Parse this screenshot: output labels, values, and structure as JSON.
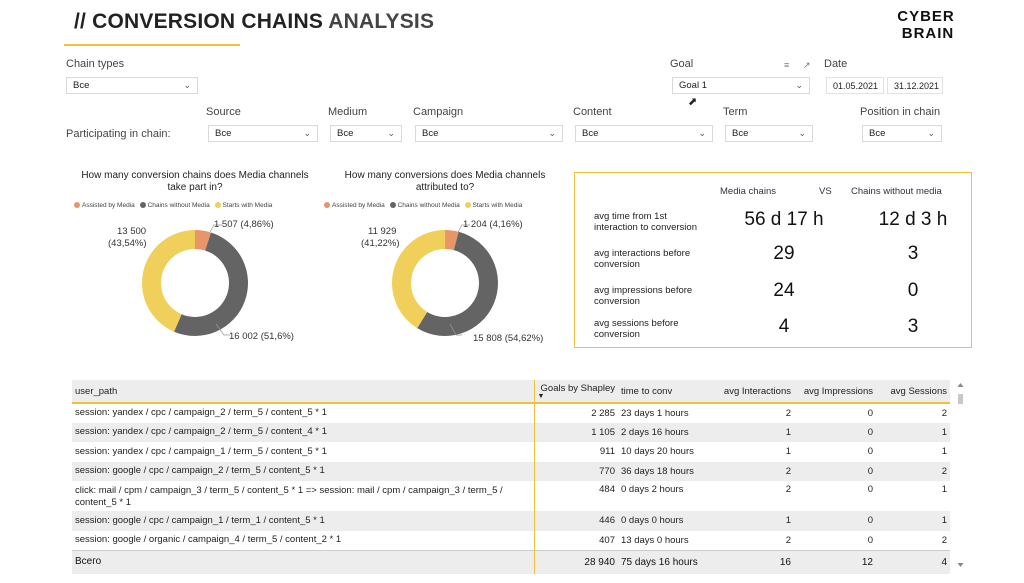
{
  "header": {
    "title_prefix": "// ",
    "title_main": "CONVERSION CHAINS",
    "title_suffix": " ANALYSIS",
    "logo_line1": "CYBER",
    "logo_line2": "BRAIN"
  },
  "filters": {
    "chain_types": {
      "label": "Chain types",
      "value": "Все"
    },
    "goal": {
      "label": "Goal",
      "value": "Goal 1"
    },
    "date": {
      "label": "Date",
      "from": "01.05.2021",
      "to": "31.12.2021"
    },
    "participating_label": "Participating in chain:",
    "source": {
      "label": "Source",
      "value": "Все"
    },
    "medium": {
      "label": "Medium",
      "value": "Все"
    },
    "campaign": {
      "label": "Campaign",
      "value": "Все"
    },
    "content": {
      "label": "Content",
      "value": "Все"
    },
    "term": {
      "label": "Term",
      "value": "Все"
    },
    "position": {
      "label": "Position in chain",
      "value": "Все"
    }
  },
  "colors": {
    "assisted": "#e8956a",
    "without": "#646464",
    "starts": "#f0cf5a",
    "accent": "#f0c040"
  },
  "chart_data": [
    {
      "type": "pie",
      "title": "How many conversion chains does Media channels take part in?",
      "legend": [
        "Assisted by Media",
        "Chains without Media",
        "Starts with Media"
      ],
      "categories": [
        "Assisted by Media",
        "Chains without Media",
        "Starts with Media"
      ],
      "values": [
        1507,
        16002,
        13500
      ],
      "labels": [
        "1 507 (4,86%)",
        "16 002 (51,6%)",
        "13 500",
        "(43,54%)"
      ]
    },
    {
      "type": "pie",
      "title": "How many conversions does Media channels attributed to?",
      "legend": [
        "Assisted by Media",
        "Chains without Media",
        "Starts with Media"
      ],
      "categories": [
        "Assisted by Media",
        "Chains without Media",
        "Starts with Media"
      ],
      "values": [
        1204,
        15808,
        11929
      ],
      "labels": [
        "1 204 (4,16%)",
        "15 808 (54,62%)",
        "11 929",
        "(41,22%)"
      ]
    }
  ],
  "comparison": {
    "col_media": "Media chains",
    "col_vs": "VS",
    "col_without": "Chains without media",
    "rows": [
      {
        "label1": "avg time from 1st",
        "label2": "interaction to conversion",
        "media": "56 d 17 h",
        "without": "12 d 3 h"
      },
      {
        "label1": "avg interactions before",
        "label2": "conversion",
        "media": "29",
        "without": "3"
      },
      {
        "label1": "avg impressions before",
        "label2": "conversion",
        "media": "24",
        "without": "0"
      },
      {
        "label1": "avg sessions before",
        "label2": "conversion",
        "media": "4",
        "without": "3"
      }
    ]
  },
  "table": {
    "headers": {
      "path": "user_path",
      "shapley": "Goals by Shapley",
      "time": "time to conv",
      "interactions": "avg Interactions",
      "impressions": "avg Impressions",
      "sessions": "avg Sessions"
    },
    "rows": [
      {
        "path": "session: yandex / cpc / campaign_2 / term_5 / content_5 * 1",
        "shapley": "2 285",
        "time": "23 days 1 hours",
        "interactions": "2",
        "impressions": "0",
        "sessions": "2"
      },
      {
        "path": "session: yandex / cpc / campaign_2 / term_5 / content_4 * 1",
        "shapley": "1 105",
        "time": "2 days 16 hours",
        "interactions": "1",
        "impressions": "0",
        "sessions": "1"
      },
      {
        "path": "session: yandex / cpc / campaign_1 / term_5 / content_5 * 1",
        "shapley": "911",
        "time": "10 days 20 hours",
        "interactions": "1",
        "impressions": "0",
        "sessions": "1"
      },
      {
        "path": "session: google / cpc / campaign_2 / term_5 / content_5 * 1",
        "shapley": "770",
        "time": "36 days 18 hours",
        "interactions": "2",
        "impressions": "0",
        "sessions": "2"
      },
      {
        "path": "click: mail / cpm / campaign_3 / term_5 / content_5 * 1 => session: mail / cpm / campaign_3 / term_5 / content_5 * 1",
        "shapley": "484",
        "time": "0 days 2 hours",
        "interactions": "2",
        "impressions": "0",
        "sessions": "1"
      },
      {
        "path": "session: google / cpc / campaign_1 / term_1 / content_5 * 1",
        "shapley": "446",
        "time": "0 days 0 hours",
        "interactions": "1",
        "impressions": "0",
        "sessions": "1"
      },
      {
        "path": "session: google / organic / campaign_4 / term_5 / content_2 * 1",
        "shapley": "407",
        "time": "13 days 0 hours",
        "interactions": "2",
        "impressions": "0",
        "sessions": "2"
      }
    ],
    "total": {
      "label": "Всего",
      "shapley": "28 940",
      "time": "75 days 16 hours",
      "interactions": "16",
      "impressions": "12",
      "sessions": "4"
    }
  }
}
